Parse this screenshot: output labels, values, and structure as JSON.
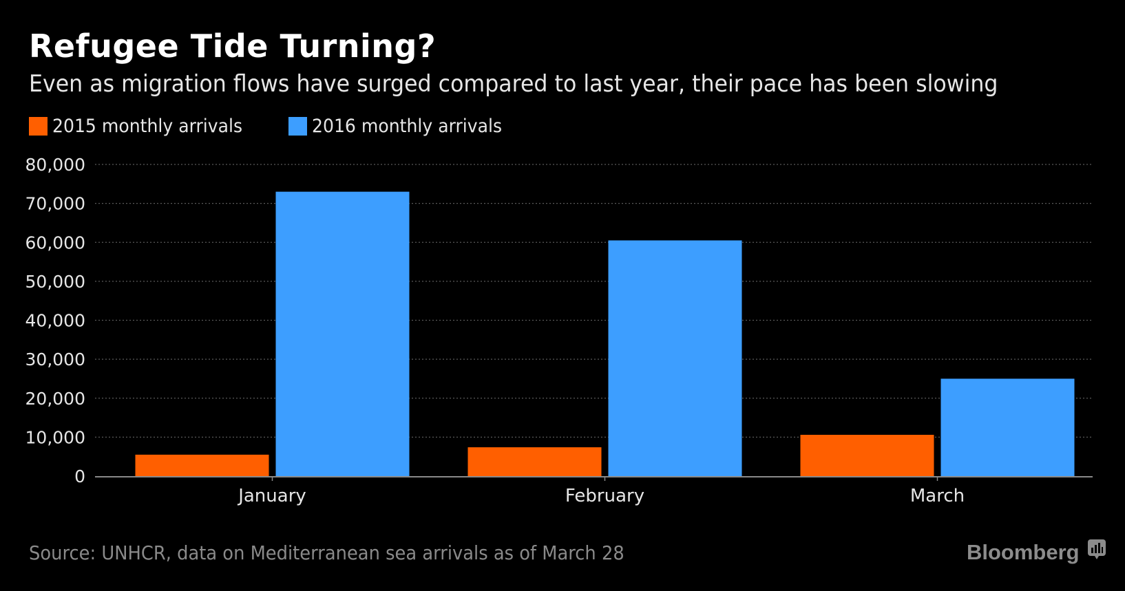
{
  "header": {
    "title": "Refugee Tide Turning?",
    "subtitle": "Even as migration flows have surged compared to last year, their pace has been slowing"
  },
  "footer": {
    "source": "Source: UNHCR, data on Mediterranean sea arrivals as of March 28",
    "brand": "Bloomberg",
    "brand_icon": "bloomberg-chart-icon"
  },
  "colors": {
    "background": "#000000",
    "series_2015": "#ff5f00",
    "series_2016": "#3d9eff",
    "grid": "#5a5a5a",
    "axis": "#8a8a8a"
  },
  "chart_data": {
    "type": "bar",
    "title": "Refugee Tide Turning?",
    "subtitle": "Even as migration flows have surged compared to last year, their pace has been slowing",
    "xlabel": "",
    "ylabel": "",
    "categories": [
      "January",
      "February",
      "March"
    ],
    "series": [
      {
        "name": "2015 monthly arrivals",
        "color": "#ff5f00",
        "values": [
          5500,
          7400,
          10600
        ]
      },
      {
        "name": "2016 monthly arrivals",
        "color": "#3d9eff",
        "values": [
          73000,
          60500,
          25000
        ]
      }
    ],
    "ylim": [
      0,
      80000
    ],
    "yticks": [
      0,
      10000,
      20000,
      30000,
      40000,
      50000,
      60000,
      70000,
      80000
    ],
    "ytick_labels": [
      "0",
      "10,000",
      "20,000",
      "30,000",
      "40,000",
      "50,000",
      "60,000",
      "70,000",
      "80,000"
    ],
    "grid": true,
    "legend_position": "top-left"
  }
}
